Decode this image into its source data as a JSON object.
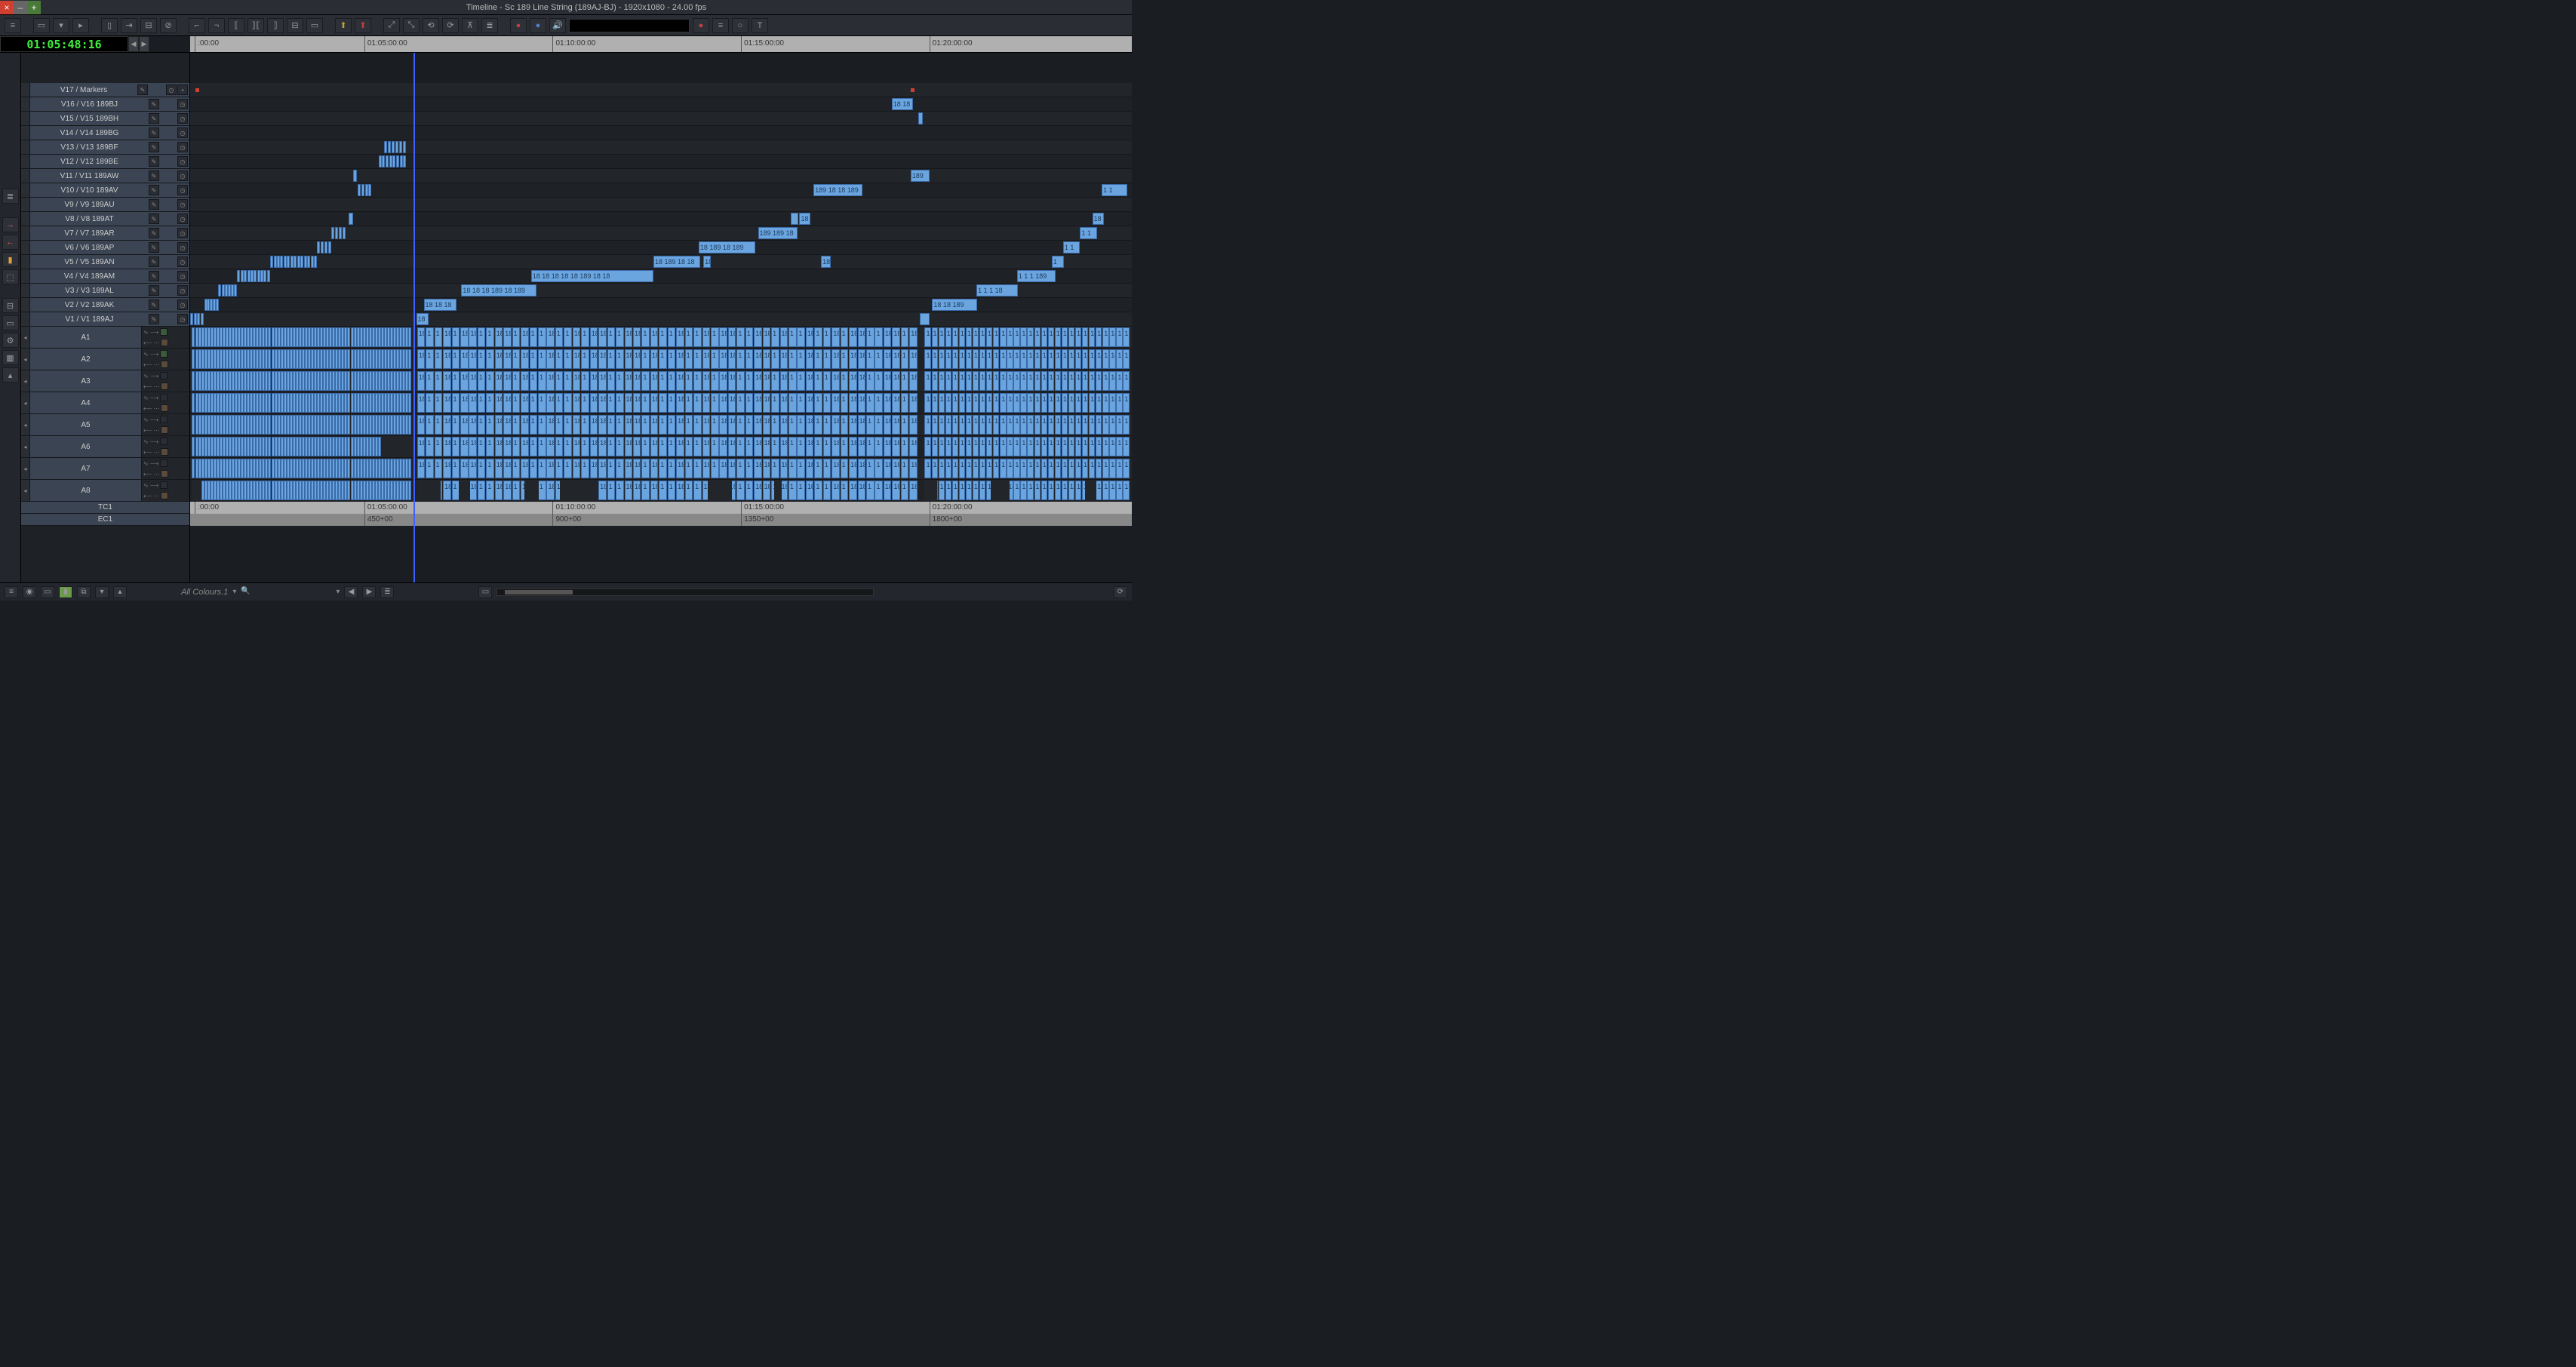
{
  "window": {
    "title": "Timeline - Sc 189 Line String (189AJ-BJ) - 1920x1080 - 24.00 fps"
  },
  "timecode": {
    "current": "01:05:48:16"
  },
  "ruler": {
    "start_label": "00:00",
    "ticks": [
      {
        "pos_pct": 0.5,
        "label": ":00:00"
      },
      {
        "pos_pct": 18.5,
        "label": "01:05:00:00"
      },
      {
        "pos_pct": 38.5,
        "label": "01:10:00:00"
      },
      {
        "pos_pct": 58.5,
        "label": "01:15:00:00"
      },
      {
        "pos_pct": 78.5,
        "label": "01:20:00:00"
      }
    ]
  },
  "ruler_tc1": {
    "ticks": [
      {
        "pos_pct": 0.5,
        "label": ":00:00"
      },
      {
        "pos_pct": 18.5,
        "label": "01:05:00:00"
      },
      {
        "pos_pct": 38.5,
        "label": "01:10:00:00"
      },
      {
        "pos_pct": 58.5,
        "label": "01:15:00:00"
      },
      {
        "pos_pct": 78.5,
        "label": "01:20:00:00"
      }
    ]
  },
  "ruler_ec1": {
    "ticks": [
      {
        "pos_pct": 18.5,
        "label": "450+00"
      },
      {
        "pos_pct": 38.5,
        "label": "900+00"
      },
      {
        "pos_pct": 58.5,
        "label": "1350+00"
      },
      {
        "pos_pct": 78.5,
        "label": "1800+00"
      }
    ]
  },
  "playhead_pct": 23.7,
  "video_tracks": [
    {
      "id": "V17",
      "label": "V17 / Markers"
    },
    {
      "id": "V16",
      "label": "V16 / V16  189BJ"
    },
    {
      "id": "V15",
      "label": "V15 / V15  189BH"
    },
    {
      "id": "V14",
      "label": "V14 / V14  189BG"
    },
    {
      "id": "V13",
      "label": "V13 / V13  189BF"
    },
    {
      "id": "V12",
      "label": "V12 / V12  189BE"
    },
    {
      "id": "V11",
      "label": "V11 / V11  189AW"
    },
    {
      "id": "V10",
      "label": "V10 / V10  189AV"
    },
    {
      "id": "V9",
      "label": "V9 / V9  189AU"
    },
    {
      "id": "V8",
      "label": "V8 / V8  189AT"
    },
    {
      "id": "V7",
      "label": "V7 / V7  189AR"
    },
    {
      "id": "V6",
      "label": "V6 / V6  189AP"
    },
    {
      "id": "V5",
      "label": "V5 / V5  189AN"
    },
    {
      "id": "V4",
      "label": "V4 / V4  189AM"
    },
    {
      "id": "V3",
      "label": "V3 / V3  189AL"
    },
    {
      "id": "V2",
      "label": "V2 / V2  189AK"
    },
    {
      "id": "V1",
      "label": "V1 / V1  189AJ"
    }
  ],
  "audio_tracks": [
    {
      "id": "A1",
      "label": "A1"
    },
    {
      "id": "A2",
      "label": "A2"
    },
    {
      "id": "A3",
      "label": "A3"
    },
    {
      "id": "A4",
      "label": "A4"
    },
    {
      "id": "A5",
      "label": "A5"
    },
    {
      "id": "A6",
      "label": "A6"
    },
    {
      "id": "A7",
      "label": "A7"
    },
    {
      "id": "A8",
      "label": "A8"
    }
  ],
  "footer_tracks": [
    {
      "id": "TC1",
      "label": "TC1"
    },
    {
      "id": "EC1",
      "label": "EC1"
    }
  ],
  "markers": [
    {
      "track": "V17",
      "pos_pct": 0.6
    },
    {
      "track": "V17",
      "pos_pct": 76.5
    }
  ],
  "video_clips": {
    "V16": [
      {
        "l": 74.5,
        "w": 2.3,
        "t": "18 18"
      }
    ],
    "V15": [
      {
        "l": 77.3,
        "w": 0.5,
        "t": ""
      }
    ],
    "V14": [],
    "V13": [
      {
        "l": 20.6,
        "w": 2.4,
        "t": "",
        "seg": 6
      }
    ],
    "V12": [
      {
        "l": 20.0,
        "w": 3.0,
        "t": "",
        "seg": 8
      }
    ],
    "V11": [
      {
        "l": 17.3,
        "w": 0.4,
        "t": ""
      },
      {
        "l": 76.5,
        "w": 2.0,
        "t": "189 18"
      }
    ],
    "V10": [
      {
        "l": 17.8,
        "w": 1.5,
        "t": "",
        "seg": 4
      },
      {
        "l": 66.2,
        "w": 5.2,
        "t": "189 18 18 189"
      },
      {
        "l": 96.8,
        "w": 2.7,
        "t": "1 1"
      }
    ],
    "V9": [],
    "V8": [
      {
        "l": 16.8,
        "w": 0.5,
        "t": ""
      },
      {
        "l": 63.8,
        "w": 0.8,
        "t": ""
      },
      {
        "l": 64.7,
        "w": 1.2,
        "t": "18"
      },
      {
        "l": 95.8,
        "w": 1.2,
        "t": "18"
      }
    ],
    "V7": [
      {
        "l": 15.0,
        "w": 1.6,
        "t": "",
        "seg": 4
      },
      {
        "l": 60.3,
        "w": 4.2,
        "t": "189 189 18"
      },
      {
        "l": 94.5,
        "w": 1.8,
        "t": "1 1"
      }
    ],
    "V6": [
      {
        "l": 13.5,
        "w": 1.5,
        "t": "",
        "seg": 4
      },
      {
        "l": 54.0,
        "w": 6.0,
        "t": "18 189 18 189 189"
      },
      {
        "l": 92.7,
        "w": 1.8,
        "t": "1 1"
      }
    ],
    "V5": [
      {
        "l": 8.5,
        "w": 5.0,
        "t": "",
        "seg": 14
      },
      {
        "l": 49.2,
        "w": 5.0,
        "t": "18 189 18 18"
      },
      {
        "l": 54.5,
        "w": 0.8,
        "t": "18"
      },
      {
        "l": 67.0,
        "w": 1.0,
        "t": "18"
      },
      {
        "l": 91.5,
        "w": 1.3,
        "t": "1"
      }
    ],
    "V4": [
      {
        "l": 5.0,
        "w": 3.5,
        "t": "",
        "seg": 10
      },
      {
        "l": 36.2,
        "w": 13.0,
        "t": "18 18 18 18 18 189 18 18"
      },
      {
        "l": 87.8,
        "w": 4.1,
        "t": "1 1 1 189"
      }
    ],
    "V3": [
      {
        "l": 3.0,
        "w": 2.0,
        "t": "",
        "seg": 6
      },
      {
        "l": 28.8,
        "w": 8.0,
        "t": "18 18 18 189 18 189"
      },
      {
        "l": 83.5,
        "w": 4.4,
        "t": "1 1 1 18"
      }
    ],
    "V2": [
      {
        "l": 1.5,
        "w": 1.5,
        "t": "",
        "seg": 5
      },
      {
        "l": 24.8,
        "w": 3.5,
        "t": "18 18 18"
      },
      {
        "l": 78.8,
        "w": 4.8,
        "t": "18 18 189"
      }
    ],
    "V1": [
      {
        "l": 0.0,
        "w": 1.5,
        "t": "",
        "seg": 4
      },
      {
        "l": 24.0,
        "w": 1.3,
        "t": "18"
      },
      {
        "l": 77.5,
        "w": 1.0,
        "t": ""
      }
    ]
  },
  "audio_block": {
    "seg_a": {
      "l": 0.2,
      "w": 23.3,
      "slices": 72
    },
    "seg_b": {
      "l": 24.1,
      "w": 53.2,
      "slices": 58,
      "label": "18 18 18 18 189 189 189 189 18 18 18 189 18 18 189 18 189 189 18 18 189 189 18 189 189 18 18 189 189 189 189 18 189 18"
    },
    "seg_c": {
      "l": 78.0,
      "w": 21.8,
      "slices": 30,
      "label": "18 18 189 18 18 18 18 18 189 1 1 1 1 1 1 1 1 1 1 1"
    }
  },
  "a6_gap": {
    "l": 20.3,
    "w": 3.3
  },
  "a8_gaps": [
    {
      "l": 0.2,
      "w": 1.0
    },
    {
      "l": 24.0,
      "w": 2.6
    },
    {
      "l": 28.5,
      "w": 1.2
    },
    {
      "l": 35.5,
      "w": 1.5
    },
    {
      "l": 39.3,
      "w": 4.0
    },
    {
      "l": 55.0,
      "w": 2.5
    },
    {
      "l": 62.0,
      "w": 0.8
    },
    {
      "l": 78.0,
      "w": 1.3
    },
    {
      "l": 85.0,
      "w": 2.0
    },
    {
      "l": 95.0,
      "w": 1.2
    }
  ],
  "bottombar": {
    "filter_label": "All Colours.1"
  },
  "colors": {
    "clip_fill": "#6ba5e0",
    "clip_border": "#3a6aa8",
    "playhead": "#4060ff",
    "timecode_green": "#3ef03e",
    "bg": "#1a1d22"
  }
}
